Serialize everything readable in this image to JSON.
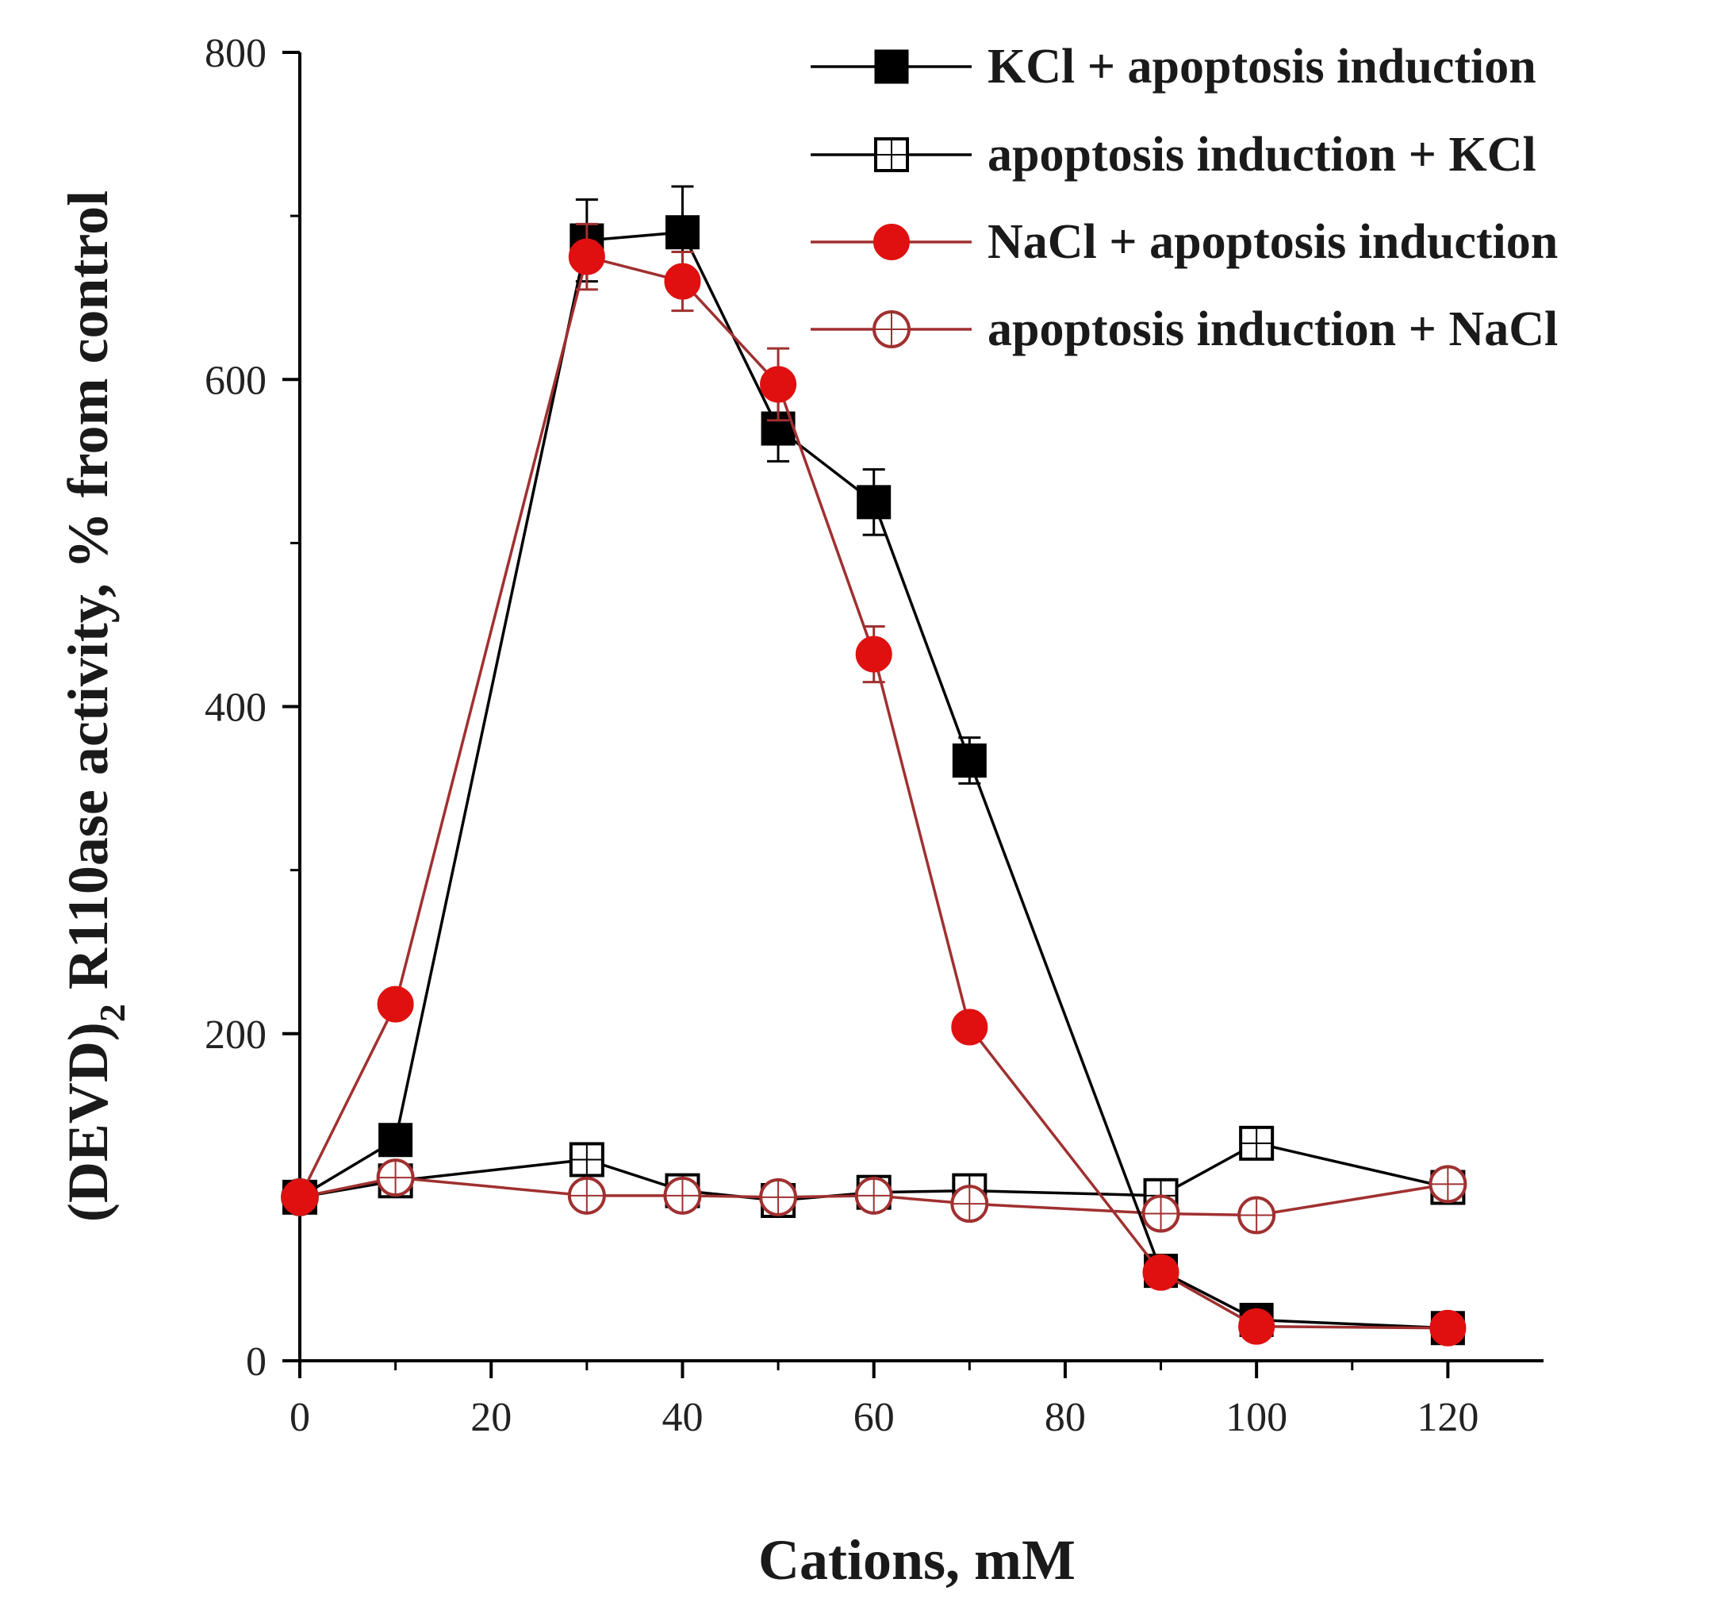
{
  "chart_data": {
    "type": "line",
    "title": "",
    "xlabel": "Cations, mM",
    "ylabel_main": "(DEVD)",
    "ylabel_sub": "2",
    "ylabel_rest": " R110ase activity, % from control",
    "xlim": [
      0,
      130
    ],
    "ylim": [
      0,
      800
    ],
    "xticks": [
      0,
      20,
      40,
      60,
      80,
      100,
      120
    ],
    "yticks": [
      0,
      200,
      400,
      600,
      800
    ],
    "xtick_labels": [
      "0",
      "20",
      "40",
      "60",
      "80",
      "100",
      "120"
    ],
    "ytick_labels": [
      "0",
      "200",
      "400",
      "600",
      "800"
    ],
    "grid": false,
    "legend_position": "top-right",
    "series": [
      {
        "name": "KCl + apoptosis induction",
        "color": "#000000",
        "marker": "square",
        "filled": true,
        "x": [
          0,
          10,
          30,
          40,
          50,
          60,
          70,
          90,
          100,
          120
        ],
        "y": [
          100,
          135,
          685,
          690,
          570,
          525,
          367,
          55,
          25,
          20
        ],
        "err": [
          0,
          0,
          25,
          28,
          20,
          20,
          14,
          0,
          0,
          0
        ]
      },
      {
        "name": "apoptosis induction + KCl",
        "color": "#000000",
        "marker": "square",
        "filled": false,
        "x": [
          0,
          10,
          30,
          40,
          50,
          60,
          70,
          90,
          100,
          120
        ],
        "y": [
          100,
          110,
          123,
          104,
          98,
          103,
          104,
          101,
          133,
          106
        ],
        "err": [
          0,
          0,
          0,
          0,
          0,
          0,
          0,
          0,
          0,
          0
        ]
      },
      {
        "name": "NaCl + apoptosis induction",
        "color": "#e01010",
        "line_color": "#a03030",
        "marker": "circle",
        "filled": true,
        "x": [
          0,
          10,
          30,
          40,
          50,
          60,
          70,
          90,
          100,
          120
        ],
        "y": [
          100,
          218,
          675,
          660,
          597,
          432,
          204,
          54,
          21,
          20
        ],
        "err": [
          0,
          0,
          20,
          18,
          22,
          17,
          0,
          0,
          0,
          0
        ]
      },
      {
        "name": "apoptosis induction + NaCl",
        "color": "#a03030",
        "marker": "circle",
        "filled": false,
        "x": [
          0,
          10,
          30,
          40,
          50,
          60,
          70,
          90,
          100,
          120
        ],
        "y": [
          100,
          112,
          101,
          101,
          100,
          101,
          96,
          90,
          89,
          108
        ],
        "err": [
          0,
          0,
          0,
          0,
          0,
          0,
          0,
          0,
          0,
          0
        ]
      }
    ]
  }
}
